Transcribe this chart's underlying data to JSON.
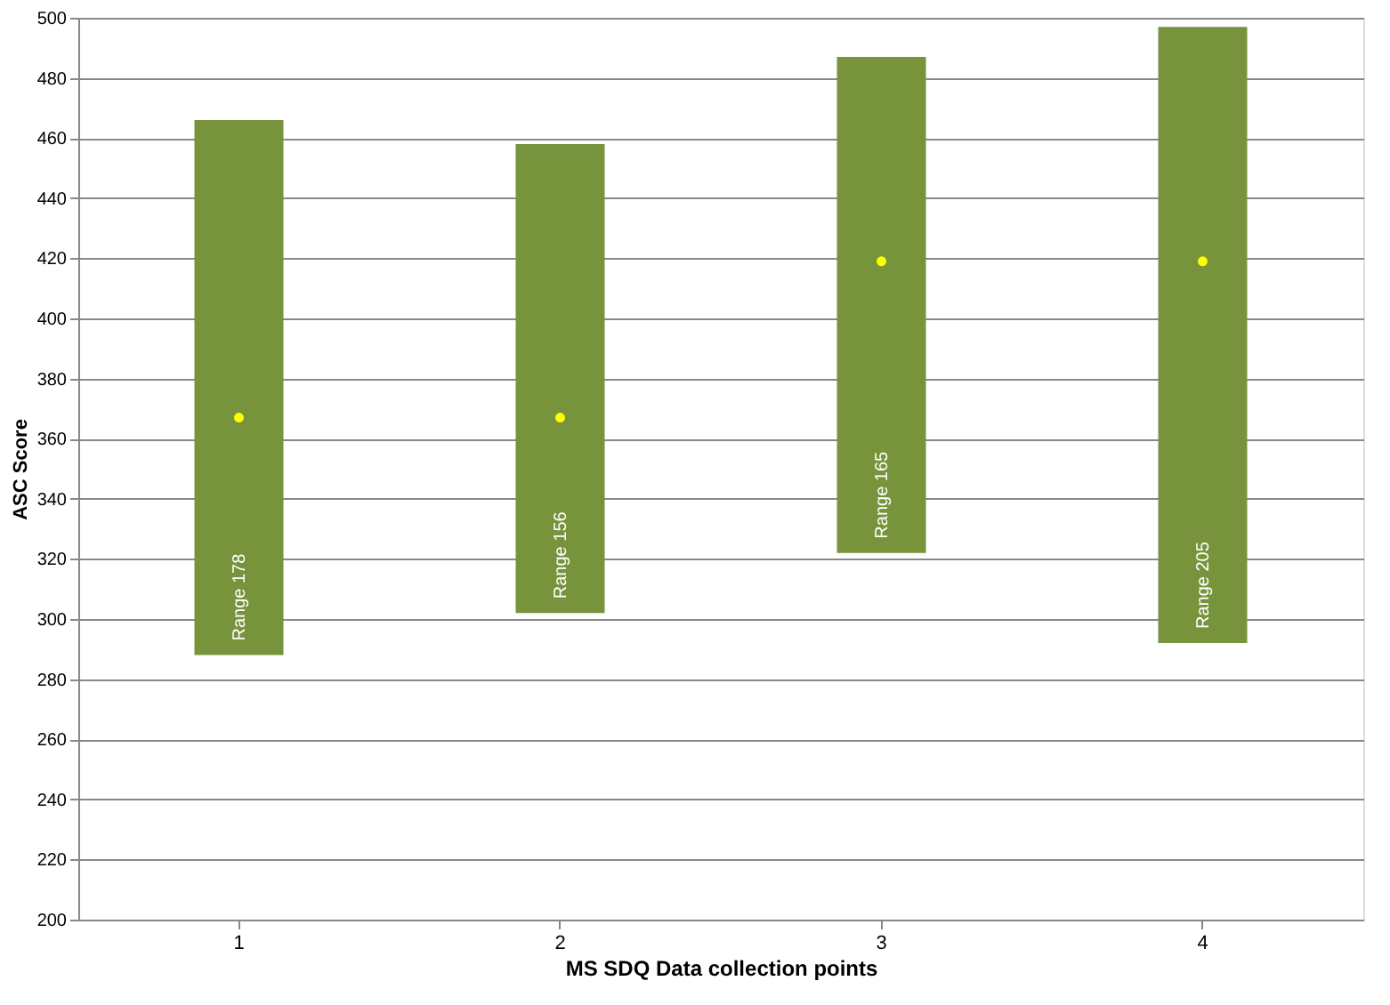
{
  "chart_data": {
    "type": "bar",
    "xlabel": "MS SDQ Data collection points",
    "ylabel": "ASC Score",
    "categories": [
      "1",
      "2",
      "3",
      "4"
    ],
    "series": [
      {
        "color": "#77933c",
        "base": [
          288,
          302,
          322,
          292
        ],
        "values": [
          178,
          156,
          165,
          205
        ],
        "value_labels": [
          "Range 178",
          "Range 156",
          "Range 165",
          "Range 205"
        ]
      },
      {
        "type": "scatter",
        "color": "#ffff00",
        "x": [
          "1",
          "2",
          "3",
          "4"
        ],
        "values": [
          367,
          367,
          419,
          419
        ],
        "marker": "circle"
      }
    ],
    "ylim": [
      200,
      500
    ],
    "yticks": [
      200,
      220,
      240,
      260,
      280,
      300,
      320,
      340,
      360,
      380,
      400,
      420,
      440,
      460,
      480,
      500
    ],
    "grid": "y"
  }
}
